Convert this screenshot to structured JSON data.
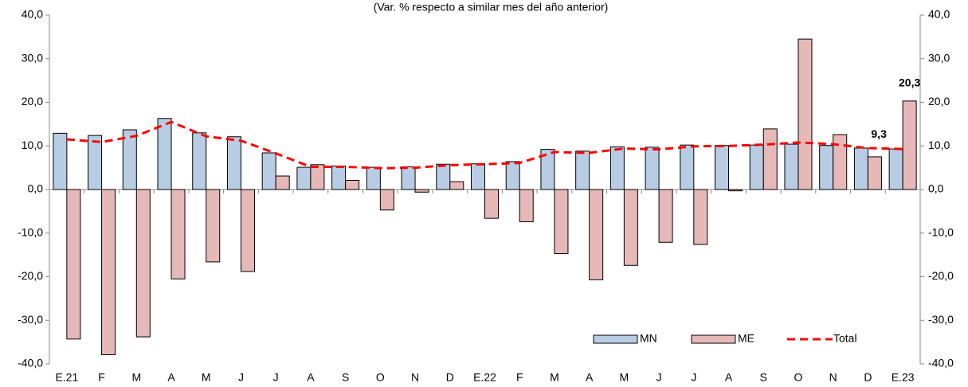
{
  "chart_data": {
    "type": "bar",
    "subtitle": "(Var. % respecto a similar mes del año anterior)",
    "categories": [
      "E.21",
      "F",
      "M",
      "A",
      "M",
      "J",
      "J",
      "A",
      "S",
      "O",
      "N",
      "D",
      "E.22",
      "F",
      "M",
      "A",
      "M",
      "J",
      "J",
      "A",
      "S",
      "O",
      "N",
      "D",
      "E.23"
    ],
    "series": [
      {
        "name": "MN",
        "type": "bar",
        "color": "#b8cce4",
        "values": [
          12.9,
          12.4,
          13.7,
          16.3,
          13.0,
          12.1,
          8.4,
          5.1,
          5.4,
          5.1,
          5.2,
          5.8,
          5.9,
          6.4,
          9.2,
          8.8,
          9.8,
          9.7,
          10.2,
          10.1,
          10.2,
          10.4,
          10.1,
          9.5,
          9.3
        ]
      },
      {
        "name": "ME",
        "type": "bar",
        "color": "#e6b9b8",
        "values": [
          -34.3,
          -37.9,
          -33.8,
          -20.5,
          -16.6,
          -18.8,
          3.1,
          5.7,
          2.1,
          -4.7,
          -0.6,
          1.8,
          -6.6,
          -7.4,
          -14.7,
          -20.7,
          -17.4,
          -12.1,
          -12.6,
          -0.3,
          13.9,
          34.5,
          12.6,
          7.5,
          20.3
        ],
        "value_labels": [
          null,
          null,
          null,
          null,
          null,
          null,
          null,
          null,
          null,
          null,
          null,
          null,
          null,
          null,
          null,
          null,
          null,
          null,
          null,
          null,
          null,
          null,
          null,
          null,
          "20,3"
        ]
      },
      {
        "name": "Total",
        "type": "line",
        "color": "#ff0000",
        "values": [
          11.5,
          10.9,
          12.3,
          15.5,
          12.2,
          11.2,
          8.3,
          5.2,
          5.2,
          4.9,
          5.0,
          5.6,
          5.8,
          6.1,
          8.6,
          8.4,
          9.4,
          9.2,
          9.9,
          10.0,
          10.3,
          10.8,
          10.4,
          9.5,
          9.3
        ],
        "value_labels": [
          null,
          null,
          null,
          null,
          null,
          null,
          null,
          null,
          null,
          null,
          null,
          null,
          null,
          null,
          null,
          null,
          null,
          null,
          null,
          null,
          null,
          null,
          null,
          null,
          "9,3"
        ]
      }
    ],
    "ylim": [
      -40,
      40
    ],
    "yticks": [
      {
        "value": -40,
        "label": "-40,0"
      },
      {
        "value": -30,
        "label": "-30,0"
      },
      {
        "value": -20,
        "label": "-20,0"
      },
      {
        "value": -10,
        "label": "-10,0"
      },
      {
        "value": 0,
        "label": "0,0"
      },
      {
        "value": 10,
        "label": "10,0"
      },
      {
        "value": 20,
        "label": "20,0"
      },
      {
        "value": 30,
        "label": "30,0"
      },
      {
        "value": 40,
        "label": "40,0"
      }
    ],
    "y2lim": [
      -40,
      40
    ],
    "y2ticks": [
      {
        "value": -40,
        "label": "-40,0"
      },
      {
        "value": -30,
        "label": "-30,0"
      },
      {
        "value": -20,
        "label": "-20,0"
      },
      {
        "value": -10,
        "label": "-10,0"
      },
      {
        "value": 0,
        "label": "0,0"
      },
      {
        "value": 10,
        "label": "10,0"
      },
      {
        "value": 20,
        "label": "20,0"
      },
      {
        "value": 30,
        "label": "30,0"
      },
      {
        "value": 40,
        "label": "40,0"
      }
    ],
    "legend": "bottom-right"
  }
}
